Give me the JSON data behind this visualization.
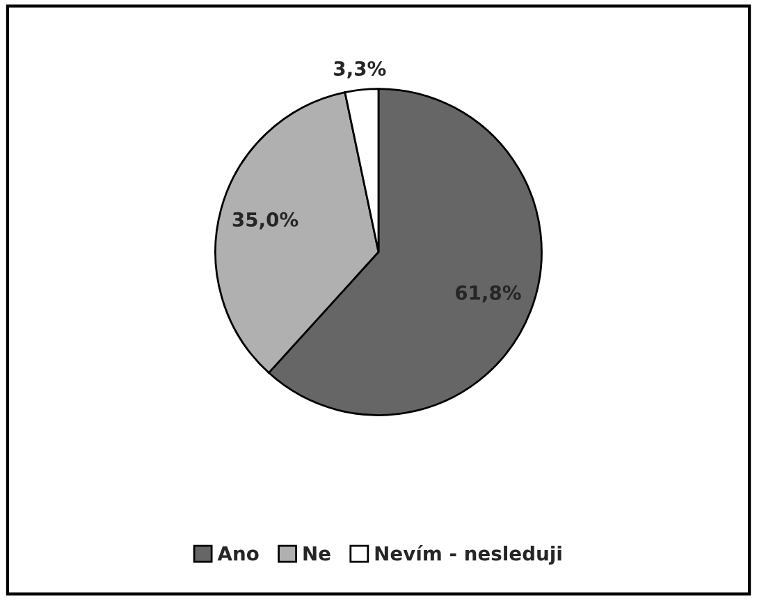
{
  "chart_data": {
    "type": "pie",
    "categories": [
      "Ano",
      "Ne",
      "Nevím - nesleduji"
    ],
    "values": [
      61.8,
      35.0,
      3.3
    ],
    "colors": [
      "#666666",
      "#b0b0b0",
      "#ffffff"
    ],
    "value_labels": [
      "61,8%",
      "35,0%",
      "3,3%"
    ],
    "legend": "bottom"
  }
}
